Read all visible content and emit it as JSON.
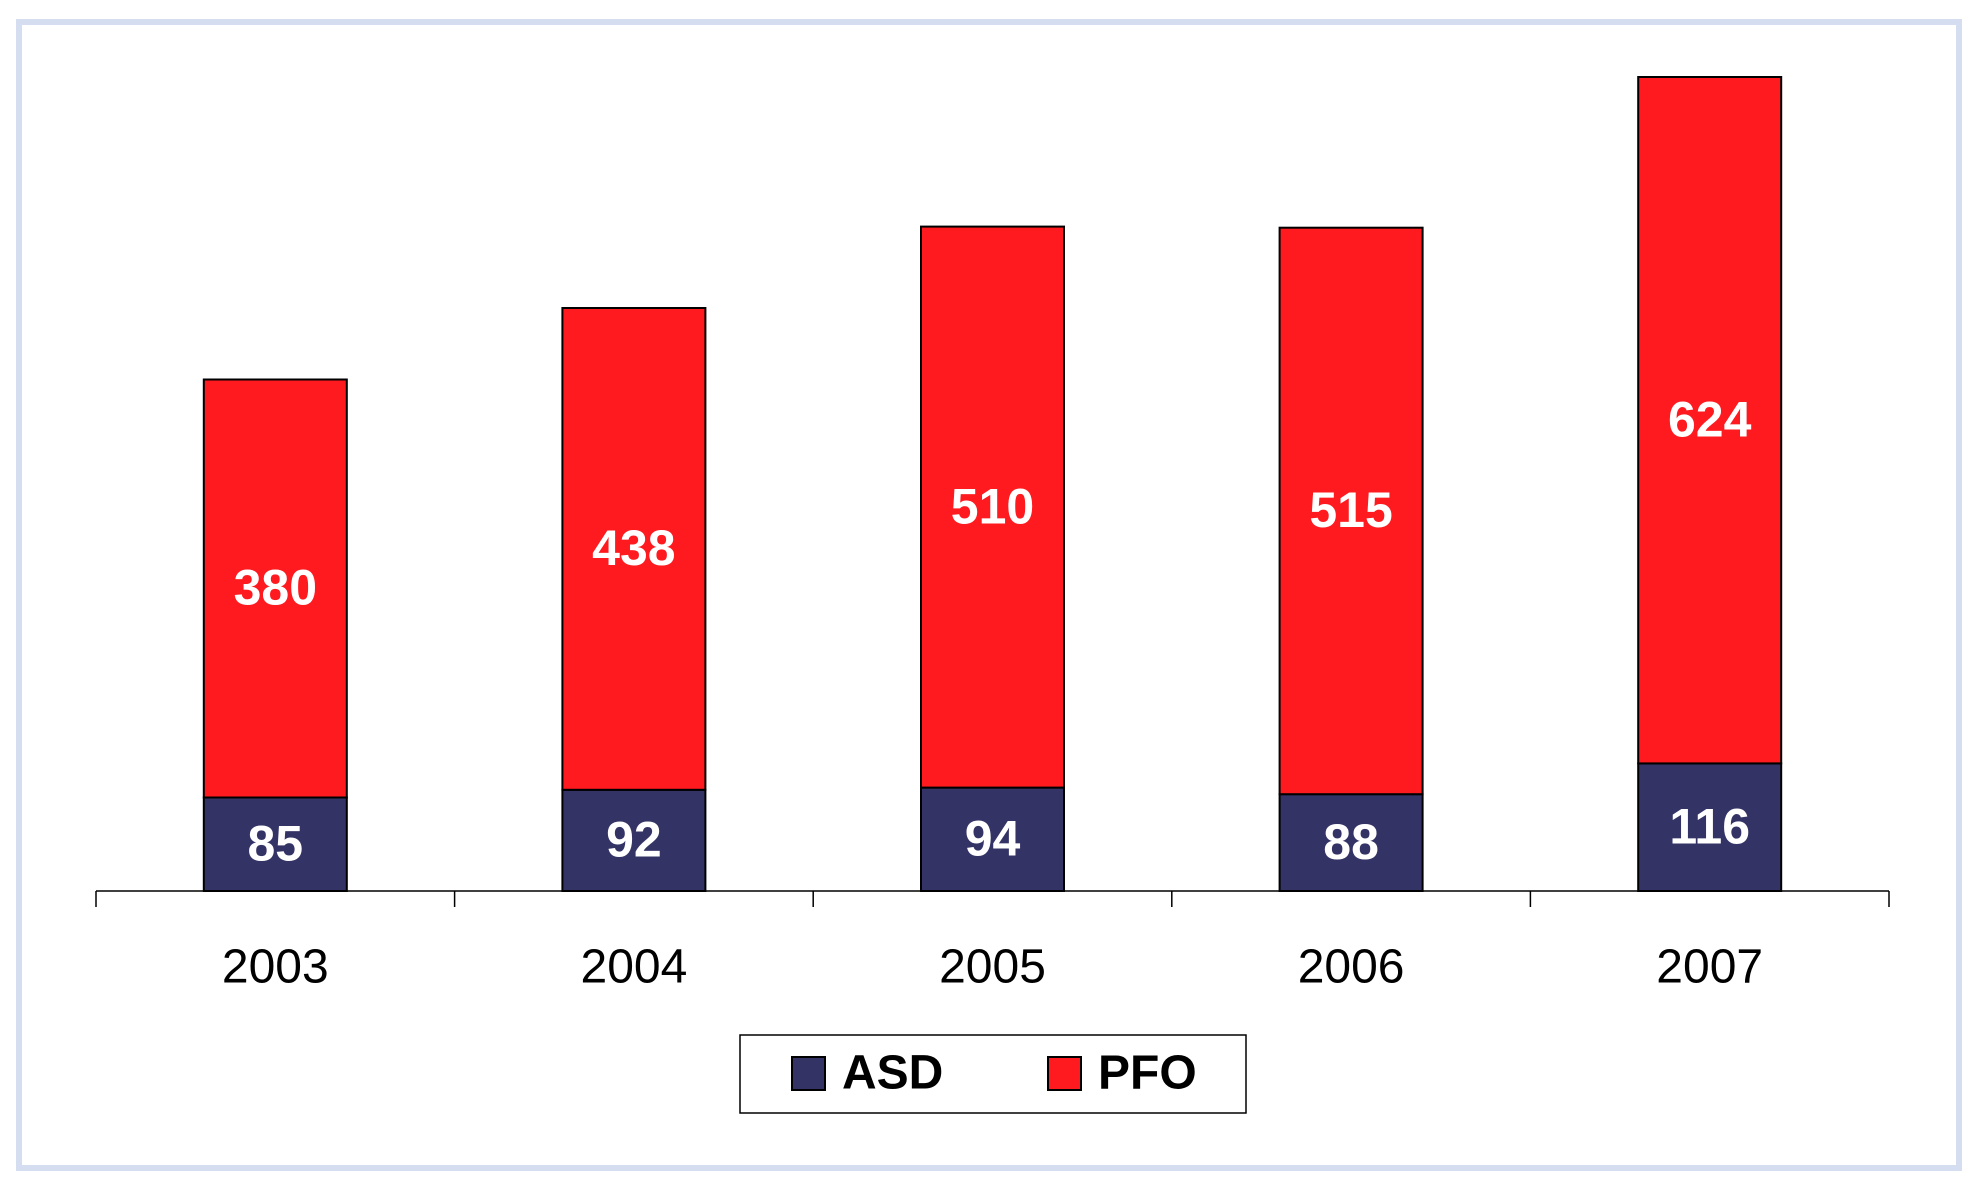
{
  "chart_data": {
    "type": "stacked-bar",
    "categories": [
      "2003",
      "2004",
      "2005",
      "2006",
      "2007"
    ],
    "series": [
      {
        "name": "ASD",
        "color": "#333366",
        "values": [
          85,
          92,
          94,
          88,
          116
        ]
      },
      {
        "name": "PFO",
        "color": "#ff1a1f",
        "values": [
          380,
          438,
          510,
          515,
          624
        ]
      }
    ],
    "legend": "bottom"
  }
}
